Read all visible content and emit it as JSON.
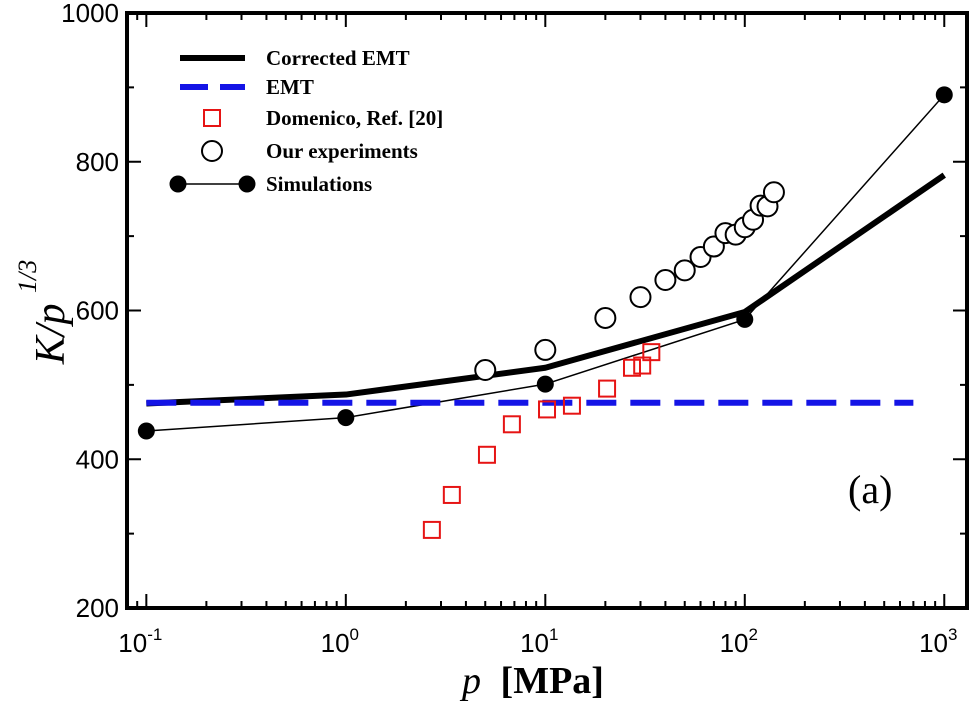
{
  "chart_data": {
    "type": "line",
    "title": "",
    "panel_label": "(a)",
    "xscale": "log",
    "xlim": [
      0.08,
      1300
    ],
    "ylim": [
      200,
      1000
    ],
    "xlabel": {
      "variable": "p",
      "unit": "[MPa]"
    },
    "ylabel": {
      "main": "K/p",
      "exponent": "1/3"
    },
    "x_ticks": [
      {
        "value": 0.1,
        "base": "10",
        "exp": "-1"
      },
      {
        "value": 1,
        "base": "10",
        "exp": "0"
      },
      {
        "value": 10,
        "base": "10",
        "exp": "1"
      },
      {
        "value": 100,
        "base": "10",
        "exp": "2"
      },
      {
        "value": 1000,
        "base": "10",
        "exp": "3"
      }
    ],
    "y_ticks": [
      "200",
      "400",
      "600",
      "800",
      "1000"
    ],
    "legend_position": "top-left",
    "series": [
      {
        "name": "Corrected EMT",
        "style": "solid-thick",
        "color": "#000000",
        "x": [
          0.1,
          1,
          10,
          100,
          1000
        ],
        "y": [
          475,
          487,
          523,
          598,
          782
        ]
      },
      {
        "name": "EMT",
        "style": "dashed",
        "color": "#1414e6",
        "x": [
          0.1,
          700
        ],
        "y": [
          476,
          476
        ]
      },
      {
        "name": "Domenico, Ref. [20]",
        "style": "open-square",
        "color": "#e61414",
        "x": [
          2.7,
          3.4,
          5.1,
          6.8,
          10.2,
          13.6,
          20.4,
          27.2,
          30.6,
          34.0
        ],
        "y": [
          305,
          352,
          406,
          447,
          467,
          472,
          495,
          523,
          526,
          544
        ]
      },
      {
        "name": "Our experiments",
        "style": "open-circle",
        "color": "#000000",
        "x": [
          5,
          10,
          20,
          30,
          40,
          50,
          60,
          70,
          80,
          90,
          100,
          110,
          120,
          130,
          140
        ],
        "y": [
          520,
          547,
          590,
          618,
          641,
          654,
          672,
          686,
          704,
          702,
          712,
          722,
          741,
          740,
          759
        ]
      },
      {
        "name": "Simulations",
        "style": "line-filled-circle",
        "color": "#000000",
        "x": [
          0.1,
          1,
          10,
          100,
          1000
        ],
        "y": [
          438,
          456,
          501,
          588,
          890
        ]
      }
    ]
  }
}
